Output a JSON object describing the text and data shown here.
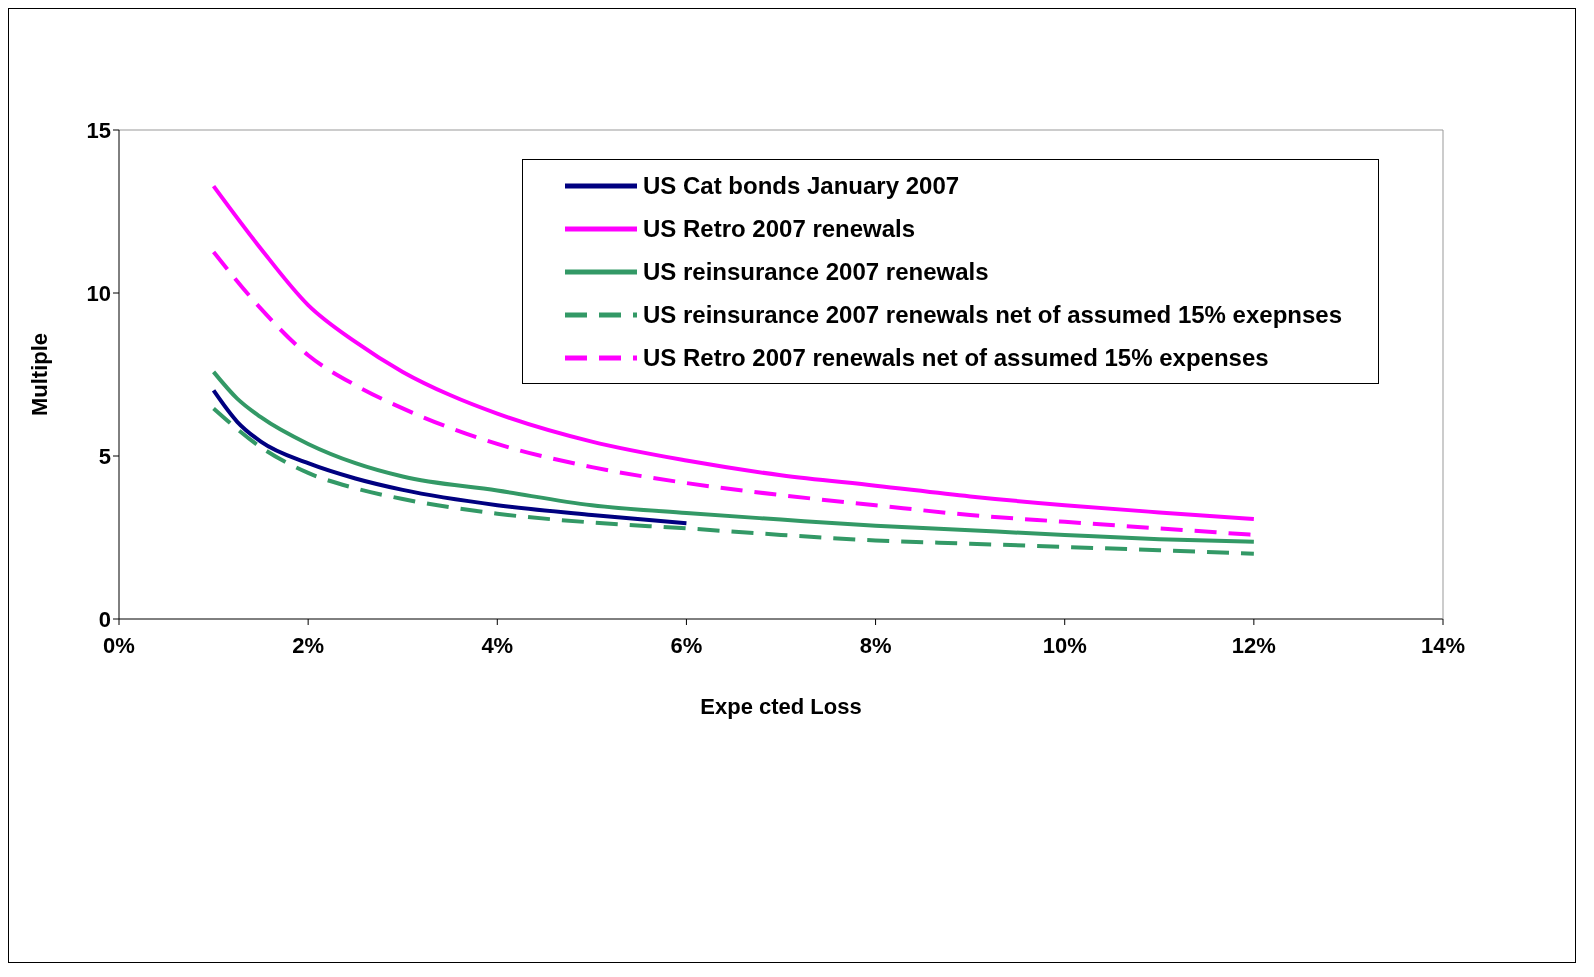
{
  "chart_data": {
    "type": "line",
    "xlabel": "Expe cted Loss",
    "ylabel": "Multiple",
    "xlim": [
      0,
      14
    ],
    "xticks": [
      {
        "value": 0,
        "label": "0%"
      },
      {
        "value": 2,
        "label": "2%"
      },
      {
        "value": 4,
        "label": "4%"
      },
      {
        "value": 6,
        "label": "6%"
      },
      {
        "value": 8,
        "label": "8%"
      },
      {
        "value": 10,
        "label": "10%"
      },
      {
        "value": 12,
        "label": "12%"
      },
      {
        "value": 14,
        "label": "14%"
      }
    ],
    "ylim": [
      0,
      15
    ],
    "yticks": [
      0,
      5,
      10,
      15
    ],
    "grid": false,
    "legend": "top right",
    "marker": "none",
    "series": [
      {
        "name": "US Cat bonds January 2007",
        "color": "#000080",
        "line_style": "solid",
        "x": [
          1,
          1.25,
          1.5,
          2,
          2.5,
          3,
          4,
          5,
          6
        ],
        "values": [
          7.01,
          6.05,
          5.44,
          4.78,
          4.31,
          3.96,
          3.49,
          3.19,
          2.94
        ]
      },
      {
        "name": "US Retro 2007 renewals",
        "color": "#ff00ff",
        "line_style": "solid",
        "x": [
          1,
          1.5,
          2,
          2.5,
          3,
          3.5,
          4,
          5,
          6,
          7,
          8,
          9,
          10,
          11,
          12
        ],
        "values": [
          13.28,
          11.36,
          9.63,
          8.5,
          7.58,
          6.87,
          6.3,
          5.44,
          4.86,
          4.41,
          4.09,
          3.76,
          3.49,
          3.27,
          3.07
        ]
      },
      {
        "name": "US  reinsurance 2007 renewals",
        "color": "#339966",
        "line_style": "solid",
        "x": [
          1,
          1.25,
          1.5,
          2,
          2.5,
          3,
          4,
          5,
          6,
          7,
          8,
          9,
          10,
          11,
          12
        ],
        "values": [
          7.58,
          6.76,
          6.19,
          5.37,
          4.78,
          4.37,
          3.94,
          3.49,
          3.25,
          3.05,
          2.86,
          2.72,
          2.58,
          2.45,
          2.37
        ]
      },
      {
        "name": "US reinsurance 2007 renewals net of assumed 15% exepnses",
        "color": "#339966",
        "line_style": "dashed",
        "x": [
          1,
          1.5,
          2,
          2.5,
          3,
          4,
          5,
          6,
          7,
          8,
          9,
          10,
          11,
          12
        ],
        "values": [
          6.46,
          5.27,
          4.48,
          4.01,
          3.68,
          3.23,
          2.96,
          2.78,
          2.58,
          2.41,
          2.31,
          2.21,
          2.11,
          2.0
        ]
      },
      {
        "name": "US Retro 2007 renewals net of assumed 15% expenses",
        "color": "#ff00ff",
        "line_style": "dashed",
        "x": [
          1,
          1.5,
          2,
          2.5,
          3,
          4,
          5,
          6,
          7,
          8,
          9,
          10,
          11,
          12
        ],
        "values": [
          11.26,
          9.52,
          8.09,
          7.17,
          6.46,
          5.37,
          4.66,
          4.17,
          3.8,
          3.49,
          3.19,
          2.98,
          2.78,
          2.58
        ]
      }
    ]
  }
}
